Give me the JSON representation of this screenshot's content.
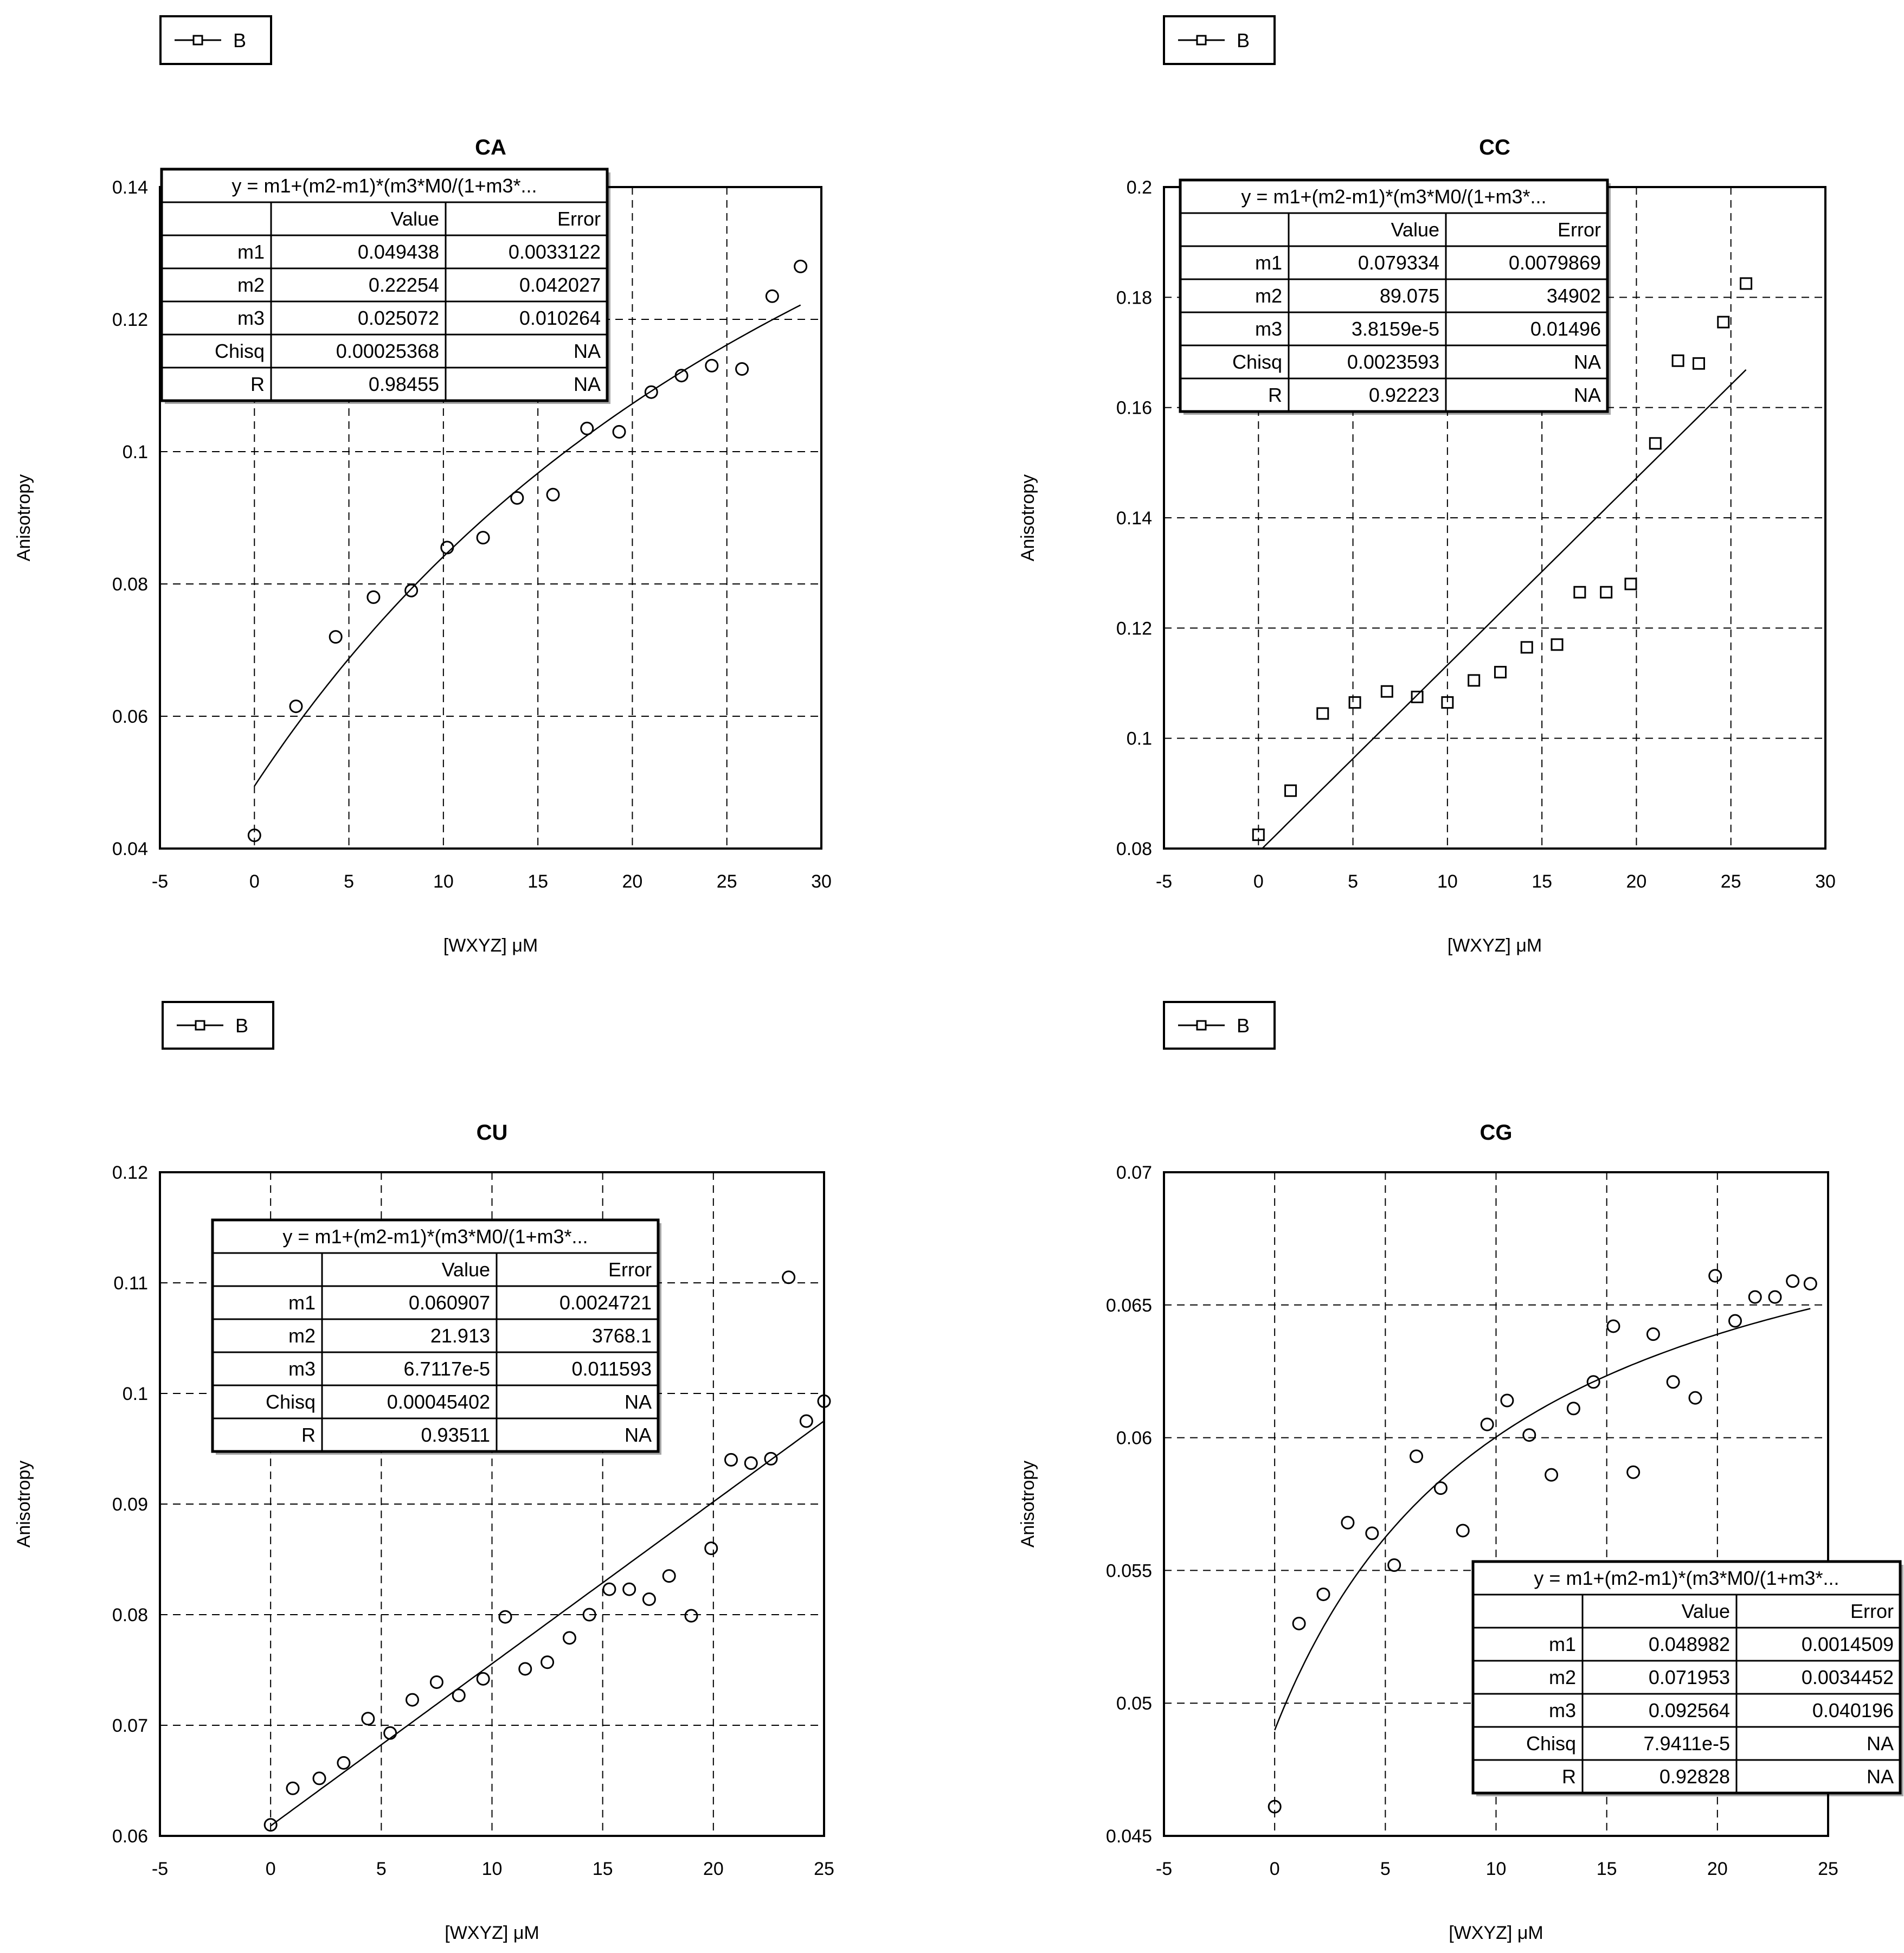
{
  "chart_data": [
    {
      "type": "scatter",
      "title": "CA",
      "xlabel": "[WXYZ] μM",
      "ylabel": "Anisotropy",
      "xlim": [
        -5,
        30
      ],
      "ylim": [
        0.04,
        0.14
      ],
      "xticks": [
        "-5",
        "0",
        "5",
        "10",
        "15",
        "20",
        "25",
        "30"
      ],
      "yticks": [
        "0.04",
        "0.06",
        "0.08",
        "0.1",
        "0.12",
        "0.14"
      ],
      "grid": true,
      "legend": {
        "placement": "top-left",
        "label": "B"
      },
      "series": [
        {
          "name": "B",
          "x": [
            0,
            2.2,
            4.3,
            6.3,
            8.3,
            10.2,
            12.1,
            13.9,
            15.8,
            17.6,
            19.3,
            21.0,
            22.6,
            24.2,
            25.8,
            27.4,
            28.9
          ],
          "y": [
            0.042,
            0.0615,
            0.072,
            0.078,
            0.079,
            0.0855,
            0.087,
            0.093,
            0.0935,
            0.1035,
            0.103,
            0.109,
            0.1115,
            0.113,
            0.1125,
            0.1235,
            0.128
          ]
        }
      ],
      "fit": {
        "m1": 0.049438,
        "m2": 0.22254,
        "m3": 0.025072,
        "x_max": 28.9
      },
      "fit_table": {
        "equation": "y = m1+(m2-m1)*(m3*M0/(1+m3*...",
        "headers": [
          "",
          "Value",
          "Error"
        ],
        "rows": [
          [
            "m1",
            "0.049438",
            "0.0033122"
          ],
          [
            "m2",
            "0.22254",
            "0.042027"
          ],
          [
            "m3",
            "0.025072",
            "0.010264"
          ],
          [
            "Chisq",
            "0.00025368",
            "NA"
          ],
          [
            "R",
            "0.98455",
            "NA"
          ]
        ]
      }
    },
    {
      "type": "scatter",
      "title": "CC",
      "xlabel": "[WXYZ] μM",
      "ylabel": "Anisotropy",
      "xlim": [
        -5,
        30
      ],
      "ylim": [
        0.08,
        0.2
      ],
      "xticks": [
        "-5",
        "0",
        "5",
        "10",
        "15",
        "20",
        "25",
        "30"
      ],
      "yticks": [
        "0.08",
        "0.1",
        "0.12",
        "0.14",
        "0.16",
        "0.18",
        "0.2"
      ],
      "grid": true,
      "legend": {
        "placement": "top-left",
        "label": "B"
      },
      "series": [
        {
          "name": "B",
          "x": [
            0,
            1.7,
            3.4,
            5.1,
            6.8,
            8.4,
            10.0,
            11.4,
            12.8,
            14.2,
            15.8,
            17.0,
            18.4,
            19.7,
            21.0,
            22.2,
            23.3,
            24.6,
            25.8
          ],
          "y": [
            0.0825,
            0.0905,
            0.1045,
            0.1065,
            0.1085,
            0.1075,
            0.1065,
            0.1105,
            0.112,
            0.1165,
            0.117,
            0.1265,
            0.1265,
            0.128,
            0.1535,
            0.1685,
            0.168,
            0.1755,
            0.1825
          ]
        }
      ],
      "fit": {
        "m1": 0.079334,
        "m2": 89.075,
        "m3": 3.8159e-05,
        "x_max": 25.8
      },
      "fit_table": {
        "equation": "y = m1+(m2-m1)*(m3*M0/(1+m3*...",
        "headers": [
          "",
          "Value",
          "Error"
        ],
        "rows": [
          [
            "m1",
            "0.079334",
            "0.0079869"
          ],
          [
            "m2",
            "89.075",
            "34902"
          ],
          [
            "m3",
            "3.8159e-5",
            "0.01496"
          ],
          [
            "Chisq",
            "0.0023593",
            "NA"
          ],
          [
            "R",
            "0.92223",
            "NA"
          ]
        ]
      }
    },
    {
      "type": "scatter",
      "title": "CU",
      "xlabel": "[WXYZ] μM",
      "ylabel": "Anisotropy",
      "xlim": [
        -5,
        25
      ],
      "ylim": [
        0.06,
        0.12
      ],
      "xticks": [
        "-5",
        "0",
        "5",
        "10",
        "15",
        "20",
        "25"
      ],
      "yticks": [
        "0.06",
        "0.07",
        "0.08",
        "0.09",
        "0.1",
        "0.11",
        "0.12"
      ],
      "grid": true,
      "legend": {
        "placement": "top-left",
        "label": "B"
      },
      "series": [
        {
          "name": "B",
          "x": [
            0,
            1.0,
            2.2,
            3.3,
            4.4,
            5.4,
            6.4,
            7.5,
            8.5,
            9.6,
            10.6,
            11.5,
            12.5,
            13.5,
            14.4,
            15.3,
            16.2,
            17.1,
            18.0,
            19.0,
            19.9,
            20.8,
            21.7,
            22.6,
            23.4,
            24.2,
            25.0
          ],
          "y": [
            0.061,
            0.0643,
            0.0652,
            0.0666,
            0.0706,
            0.0693,
            0.0723,
            0.0739,
            0.0727,
            0.0742,
            0.0798,
            0.0751,
            0.0757,
            0.0779,
            0.08,
            0.0823,
            0.0823,
            0.0814,
            0.0835,
            0.0799,
            0.086,
            0.094,
            0.0937,
            0.0941,
            0.1105,
            0.0975,
            0.0993
          ]
        }
      ],
      "fit": {
        "m1": 0.060907,
        "m2": 21.913,
        "m3": 6.7117e-05,
        "x_max": 25.0
      },
      "fit_table": {
        "equation": "y = m1+(m2-m1)*(m3*M0/(1+m3*...",
        "headers": [
          "",
          "Value",
          "Error"
        ],
        "rows": [
          [
            "m1",
            "0.060907",
            "0.0024721"
          ],
          [
            "m2",
            "21.913",
            "3768.1"
          ],
          [
            "m3",
            "6.7117e-5",
            "0.011593"
          ],
          [
            "Chisq",
            "0.00045402",
            "NA"
          ],
          [
            "R",
            "0.93511",
            "NA"
          ]
        ]
      }
    },
    {
      "type": "scatter",
      "title": "CG",
      "xlabel": "[WXYZ] μM",
      "ylabel": "Anisotropy",
      "xlim": [
        -5,
        25
      ],
      "ylim": [
        0.045,
        0.07
      ],
      "xticks": [
        "-5",
        "0",
        "5",
        "10",
        "15",
        "20",
        "25"
      ],
      "yticks": [
        "0.045",
        "0.05",
        "0.055",
        "0.06",
        "0.065",
        "0.07"
      ],
      "grid": true,
      "legend": {
        "placement": "top-left",
        "label": "B"
      },
      "series": [
        {
          "name": "B",
          "x": [
            0,
            1.1,
            2.2,
            3.3,
            4.4,
            5.4,
            6.4,
            7.5,
            8.5,
            9.6,
            10.5,
            11.5,
            12.5,
            13.5,
            14.4,
            15.3,
            16.2,
            17.1,
            18.0,
            19.0,
            19.9,
            20.8,
            21.7,
            22.6,
            23.4,
            24.2
          ],
          "y": [
            0.0461,
            0.053,
            0.0541,
            0.0568,
            0.0564,
            0.0552,
            0.0593,
            0.0581,
            0.0565,
            0.0605,
            0.0614,
            0.0601,
            0.0586,
            0.0611,
            0.0621,
            0.0642,
            0.0587,
            0.0639,
            0.0621,
            0.0615,
            0.0661,
            0.0644,
            0.0653,
            0.0653,
            0.0659,
            0.0658
          ]
        }
      ],
      "fit": {
        "m1": 0.048982,
        "m2": 0.071953,
        "m3": 0.092564,
        "x_max": 24.2
      },
      "fit_table": {
        "equation": "y = m1+(m2-m1)*(m3*M0/(1+m3*...",
        "headers": [
          "",
          "Value",
          "Error"
        ],
        "rows": [
          [
            "m1",
            "0.048982",
            "0.0014509"
          ],
          [
            "m2",
            "0.071953",
            "0.0034452"
          ],
          [
            "m3",
            "0.092564",
            "0.040196"
          ],
          [
            "Chisq",
            "7.9411e-5",
            "NA"
          ],
          [
            "R",
            "0.92828",
            "NA"
          ]
        ]
      }
    }
  ]
}
